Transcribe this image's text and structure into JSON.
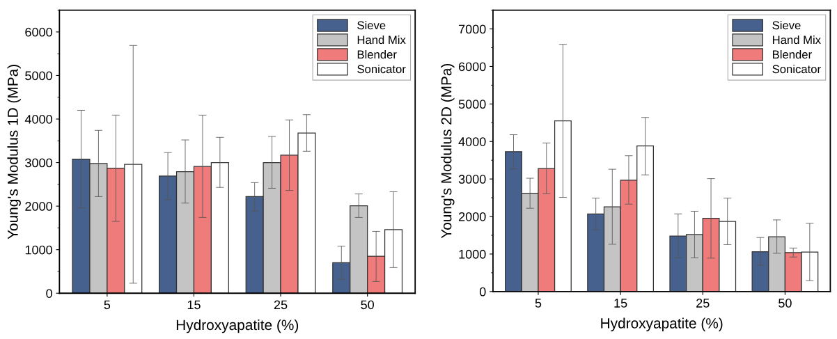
{
  "chart_data": [
    {
      "type": "bar",
      "xlabel": "Hydroxyapatite (%)",
      "ylabel": "Young's Modulus 1D (MPa)",
      "categories": [
        "5",
        "15",
        "25",
        "50"
      ],
      "ylim": [
        0,
        6500
      ],
      "yticks": [
        0,
        1000,
        2000,
        3000,
        4000,
        5000,
        6000
      ],
      "legend": "top right",
      "grid": false,
      "series": [
        {
          "name": "Sieve",
          "color": "#46618d",
          "values": [
            3080,
            2690,
            2220,
            700
          ],
          "errors": [
            [
              1960,
              4200
            ],
            [
              2150,
              3230
            ],
            [
              1890,
              2540
            ],
            [
              320,
              1080
            ]
          ]
        },
        {
          "name": "Hand Mix",
          "color": "#c4c4c4",
          "values": [
            2980,
            2790,
            3000,
            2010
          ],
          "errors": [
            [
              2220,
              3740
            ],
            [
              2070,
              3520
            ],
            [
              2410,
              3600
            ],
            [
              1740,
              2280
            ]
          ]
        },
        {
          "name": "Blender",
          "color": "#ef7b7b",
          "values": [
            2870,
            2910,
            3170,
            850
          ],
          "errors": [
            [
              1650,
              4090
            ],
            [
              1740,
              4090
            ],
            [
              2360,
              3980
            ],
            [
              270,
              1420
            ]
          ]
        },
        {
          "name": "Sonicator",
          "color": "#ffffff",
          "values": [
            2960,
            3000,
            3680,
            1460
          ],
          "errors": [
            [
              230,
              5690
            ],
            [
              2430,
              3580
            ],
            [
              3260,
              4100
            ],
            [
              590,
              2330
            ]
          ]
        }
      ]
    },
    {
      "type": "bar",
      "xlabel": "Hydroxyapatite (%)",
      "ylabel": "Young's Modulus 2D (MPa)",
      "categories": [
        "5",
        "15",
        "25",
        "50"
      ],
      "ylim": [
        0,
        7500
      ],
      "yticks": [
        0,
        1000,
        2000,
        3000,
        4000,
        5000,
        6000,
        7000
      ],
      "legend": "top right",
      "grid": false,
      "series": [
        {
          "name": "Sieve",
          "color": "#46618d",
          "values": [
            3730,
            2070,
            1480,
            1060
          ],
          "errors": [
            [
              3270,
              4180
            ],
            [
              1650,
              2490
            ],
            [
              900,
              2070
            ],
            [
              700,
              1440
            ]
          ]
        },
        {
          "name": "Hand Mix",
          "color": "#c4c4c4",
          "values": [
            2620,
            2260,
            1520,
            1460
          ],
          "errors": [
            [
              2220,
              3020
            ],
            [
              1260,
              3260
            ],
            [
              900,
              2140
            ],
            [
              1020,
              1910
            ]
          ]
        },
        {
          "name": "Blender",
          "color": "#ef7b7b",
          "values": [
            3280,
            2970,
            1950,
            1040
          ],
          "errors": [
            [
              2610,
              3960
            ],
            [
              2330,
              3620
            ],
            [
              890,
              3010
            ],
            [
              920,
              1160
            ]
          ]
        },
        {
          "name": "Sonicator",
          "color": "#ffffff",
          "values": [
            4550,
            3880,
            1870,
            1050
          ],
          "errors": [
            [
              2510,
              6590
            ],
            [
              3110,
              4640
            ],
            [
              1250,
              2490
            ],
            [
              290,
              1820
            ]
          ]
        }
      ]
    }
  ]
}
